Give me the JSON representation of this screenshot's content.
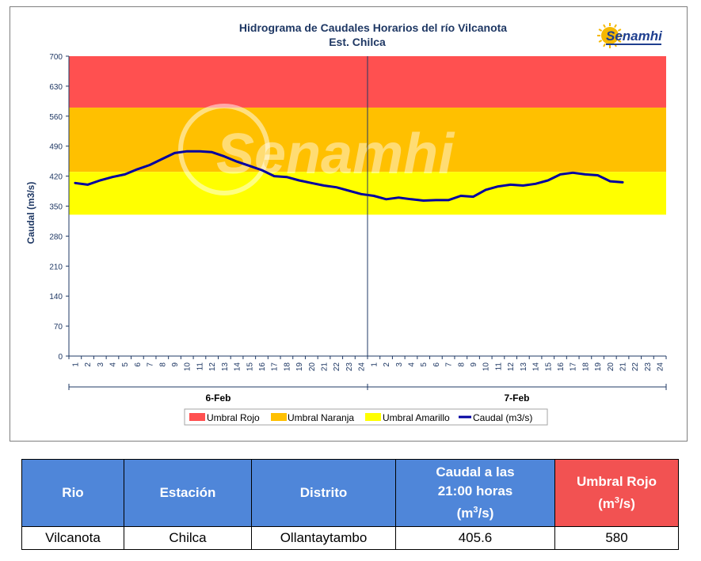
{
  "chart_data": {
    "type": "line",
    "title": "Hidrograma de Caudales Horarios del río Vilcanota",
    "subtitle": "Est. Chilca",
    "ylabel": "Caudal  (m3/s)",
    "ylim": [
      0,
      700
    ],
    "yticks": [
      "0",
      "70",
      "140",
      "210",
      "280",
      "350",
      "420",
      "490",
      "560",
      "630",
      "700"
    ],
    "xtick_labels": [
      "1",
      "2",
      "3",
      "4",
      "5",
      "6",
      "7",
      "8",
      "9",
      "10",
      "11",
      "12",
      "13",
      "14",
      "15",
      "16",
      "17",
      "18",
      "19",
      "20",
      "21",
      "22",
      "23",
      "24",
      "1",
      "2",
      "3",
      "4",
      "5",
      "6",
      "7",
      "8",
      "9",
      "10",
      "11",
      "12",
      "13",
      "14",
      "15",
      "16",
      "17",
      "18",
      "19",
      "20",
      "21",
      "22",
      "23",
      "24"
    ],
    "days": [
      "6-Feb",
      "7-Feb"
    ],
    "bands": [
      {
        "name": "Umbral Rojo",
        "from": 580,
        "to": 700,
        "color": "#ff5050"
      },
      {
        "name": "Umbral Naranja",
        "from": 430,
        "to": 580,
        "color": "#ffc000"
      },
      {
        "name": "Umbral Amarillo",
        "from": 330,
        "to": 430,
        "color": "#ffff00"
      }
    ],
    "series": [
      {
        "name": "Caudal (m3/s)",
        "color": "#0000a0",
        "values": [
          404,
          400,
          410,
          418,
          424,
          436,
          446,
          460,
          474,
          478,
          478,
          476,
          466,
          454,
          444,
          434,
          420,
          418,
          410,
          404,
          398,
          394,
          386,
          378,
          374,
          366,
          370,
          366,
          363,
          364,
          364,
          374,
          372,
          388,
          396,
          400,
          398,
          402,
          410,
          424,
          428,
          424,
          422,
          408,
          405.6
        ]
      }
    ],
    "grid": false,
    "legend_position": "bottom"
  },
  "logo": {
    "text": "Senamhi"
  },
  "watermark": {
    "text": "Senamhi"
  },
  "table": {
    "headers": {
      "rio": "Rio",
      "estacion": "Estación",
      "distrito": "Distrito",
      "caudal_line1": "Caudal a las",
      "caudal_line2": "21:00 horas",
      "caudal_unit_pre": "(m",
      "caudal_unit_sup": "3",
      "caudal_unit_post": "/s)",
      "umbral_line1": "Umbral Rojo",
      "umbral_unit_pre": "(m",
      "umbral_unit_sup": "3",
      "umbral_unit_post": "/s)"
    },
    "row": {
      "rio": "Vilcanota",
      "estacion": "Chilca",
      "distrito": "Ollantaytambo",
      "caudal": "405.6",
      "umbral_rojo": "580"
    }
  },
  "colors": {
    "header_blue": "#4f86d9",
    "header_red": "#f25252",
    "axis": "#1f3864"
  }
}
